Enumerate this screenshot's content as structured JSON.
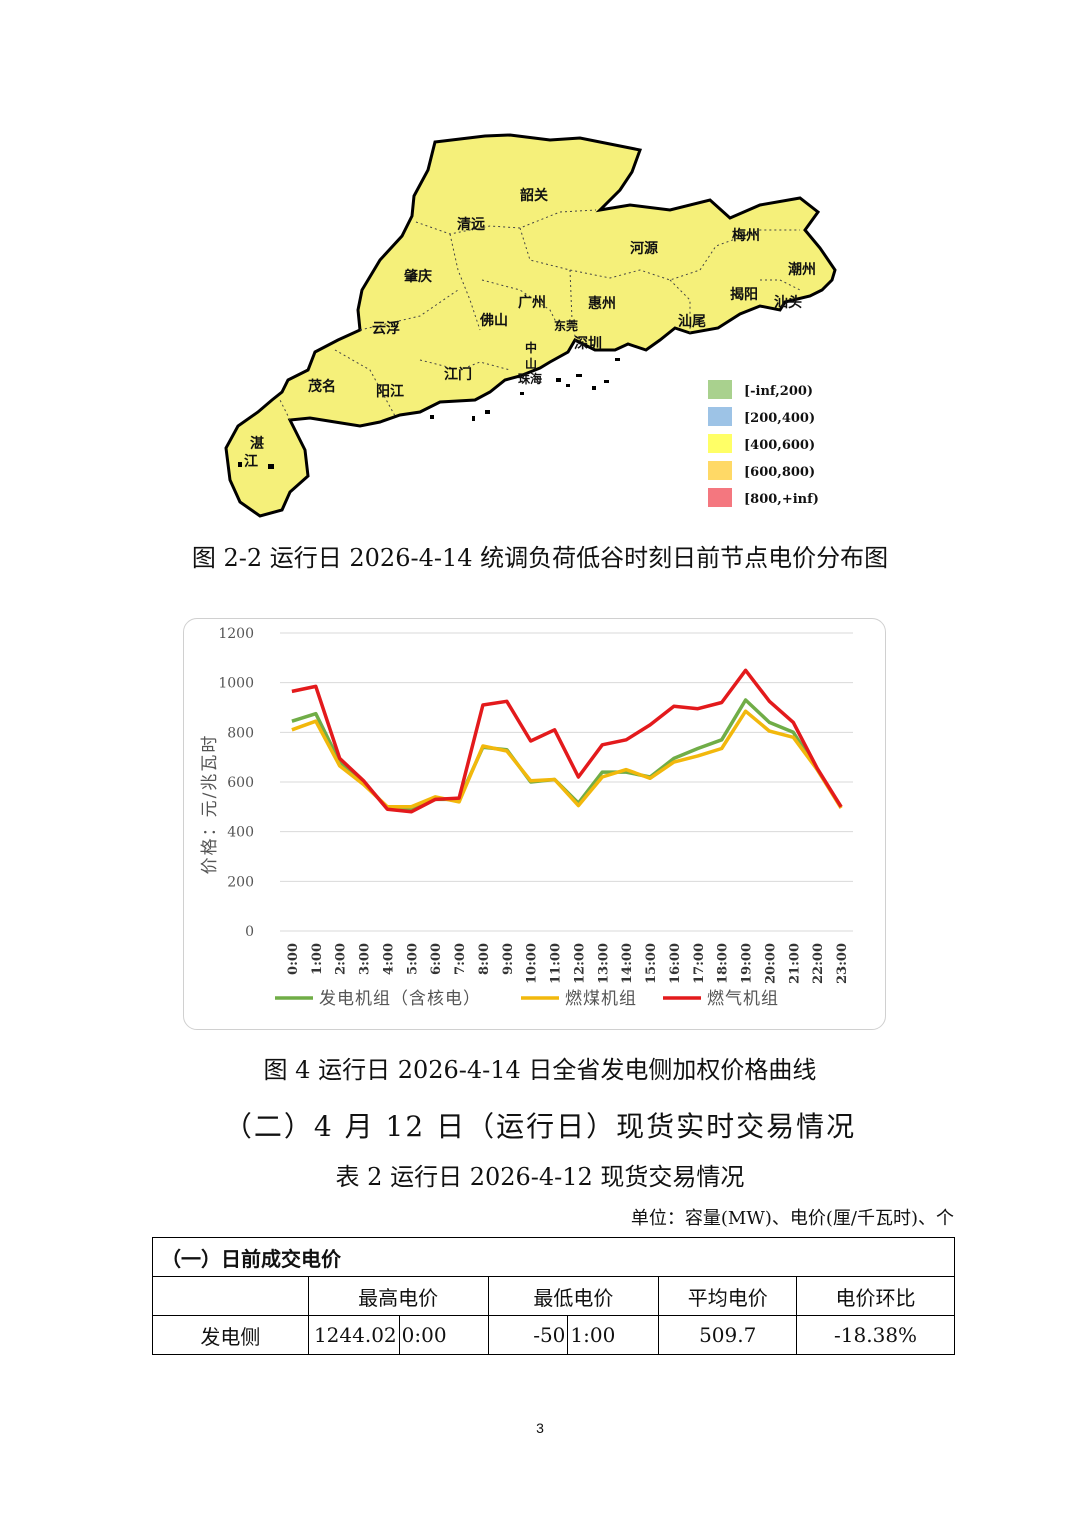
{
  "map": {
    "cities": [
      "韶关",
      "清远",
      "河源",
      "梅州",
      "潮州",
      "肇庆",
      "广州",
      "惠州",
      "揭阳",
      "汕头",
      "佛山",
      "东莞",
      "汕尾",
      "云浮",
      "中",
      "山",
      "深圳",
      "珠海",
      "江门",
      "茂名",
      "阳江",
      "湛",
      "江"
    ],
    "fill_color": "#f5f07a",
    "legend": [
      {
        "label": "[-inf,200)",
        "color": "#a9d18e"
      },
      {
        "label": "[200,400)",
        "color": "#9dc3e6"
      },
      {
        "label": "[400,600)",
        "color": "#ffff66"
      },
      {
        "label": "[600,800)",
        "color": "#ffd966"
      },
      {
        "label": "[800,+inf)",
        "color": "#f4777f"
      }
    ],
    "caption": "图 2-2 运行日 2026-4-14 统调负荷低谷时刻日前节点电价分布图"
  },
  "chart_data": {
    "type": "line",
    "categories": [
      "0:00",
      "1:00",
      "2:00",
      "3:00",
      "4:00",
      "5:00",
      "6:00",
      "7:00",
      "8:00",
      "9:00",
      "10:00",
      "11:00",
      "12:00",
      "13:00",
      "14:00",
      "15:00",
      "16:00",
      "17:00",
      "18:00",
      "19:00",
      "20:00",
      "21:00",
      "22:00",
      "23:00"
    ],
    "series": [
      {
        "name": "发电机组（含核电）",
        "color": "#70ad47",
        "values": [
          845,
          875,
          680,
          600,
          495,
          490,
          530,
          530,
          740,
          730,
          600,
          610,
          515,
          640,
          640,
          620,
          695,
          735,
          770,
          930,
          840,
          800,
          650,
          500
        ]
      },
      {
        "name": "燃煤机组",
        "color": "#f2b80c",
        "values": [
          810,
          845,
          665,
          590,
          500,
          500,
          540,
          520,
          745,
          725,
          605,
          610,
          505,
          620,
          650,
          615,
          680,
          705,
          735,
          885,
          805,
          780,
          650,
          495
        ]
      },
      {
        "name": "燃气机组",
        "color": "#e31a1c",
        "values": [
          965,
          985,
          695,
          605,
          490,
          480,
          530,
          535,
          910,
          925,
          765,
          810,
          620,
          750,
          770,
          830,
          905,
          895,
          920,
          1050,
          925,
          840,
          655,
          500
        ]
      }
    ],
    "ylabel": "价格：元/兆瓦时",
    "ylim": [
      0,
      1200
    ],
    "yticks": [
      0,
      200,
      400,
      600,
      800,
      1000,
      1200
    ],
    "grid": true,
    "legend_position": "bottom"
  },
  "chart_caption": "图 4 运行日 2026-4-14 日全省发电侧加权价格曲线",
  "section_heading": "（二）4 月 12 日（运行日）现货实时交易情况",
  "table_title": "表 2 运行日 2026-4-12 现货交易情况",
  "unit_note": "单位：容量(MW)、电价(厘/千瓦时)、个",
  "table": {
    "section_label": "（一）日前成交电价",
    "headers": [
      "最高电价",
      "最低电价",
      "平均电价",
      "电价环比"
    ],
    "row_label": "发电侧",
    "max_price": "1244.02",
    "max_time": "0:00",
    "min_price": "-50",
    "min_time": "1:00",
    "avg_price": "509.7",
    "ratio": "-18.38%"
  },
  "page_number": "3"
}
